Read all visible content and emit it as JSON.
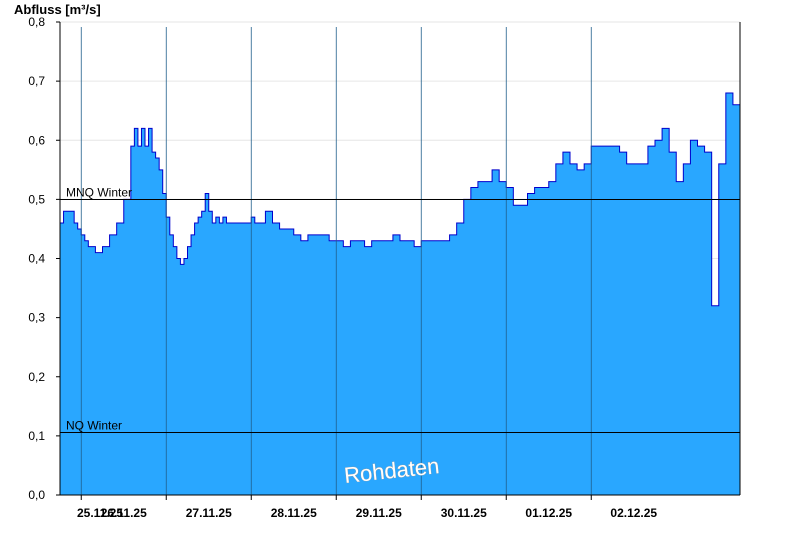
{
  "chart_data": {
    "type": "area",
    "ylabel": "Abfluss [m³/s]",
    "ylim": [
      0,
      0.8
    ],
    "yticks": [
      "0,0",
      "0,1",
      "0,2",
      "0,3",
      "0,4",
      "0,5",
      "0,6",
      "0,7",
      "0,8"
    ],
    "xlim": [
      "24.11.25 18:00",
      "02.12.25 18:00"
    ],
    "day_boundaries": [
      "26.11.25 00:00",
      "27.11.25 00:00",
      "28.11.25 00:00",
      "29.11.25 00:00",
      "30.11.25 00:00",
      "01.12.25 00:00",
      "02.12.25 00:00"
    ],
    "xtick_labels": [
      "25.11.25",
      "26.11.25",
      "27.11.25",
      "28.11.25",
      "29.11.25",
      "30.11.25",
      "01.12.25",
      "02.12.25"
    ],
    "grid": "horizontal",
    "fill_color": "#29a7ff",
    "line_color": "#0000cc",
    "reference_lines": [
      {
        "label": "MNQ Winter",
        "value": 0.5
      },
      {
        "label": "NQ Winter",
        "value": 0.107
      }
    ],
    "watermark": "Rohdaten",
    "series": [
      {
        "time_hours_from_start": [
          0,
          1,
          3,
          4,
          5,
          6,
          7,
          8,
          9,
          10,
          12,
          14,
          16,
          18,
          20,
          21,
          22,
          23,
          24,
          25,
          26,
          27,
          28,
          29,
          30,
          31,
          32,
          33,
          34,
          35,
          36,
          37,
          38,
          39,
          40,
          41,
          42,
          43,
          44,
          45,
          46,
          47,
          48,
          49,
          50,
          51,
          52,
          53,
          54,
          55,
          56,
          58,
          60,
          62,
          64,
          66,
          68,
          70,
          72,
          74,
          76,
          78,
          80,
          82,
          84,
          86,
          88,
          90,
          92,
          94,
          96,
          98,
          100,
          102,
          104,
          106,
          108,
          110,
          112,
          114,
          116,
          118,
          120,
          122,
          124,
          126,
          128,
          130,
          132,
          134,
          136,
          138,
          140,
          142,
          144,
          146,
          148,
          150,
          152,
          154,
          156,
          158,
          160,
          162,
          164,
          166,
          168,
          170,
          172,
          174,
          176,
          178,
          180,
          182,
          184,
          186,
          188,
          190,
          192
        ],
        "values": [
          0.46,
          0.48,
          0.48,
          0.46,
          0.45,
          0.44,
          0.43,
          0.42,
          0.42,
          0.41,
          0.42,
          0.44,
          0.46,
          0.5,
          0.59,
          0.62,
          0.59,
          0.62,
          0.59,
          0.62,
          0.58,
          0.57,
          0.55,
          0.51,
          0.47,
          0.44,
          0.42,
          0.4,
          0.39,
          0.4,
          0.42,
          0.44,
          0.46,
          0.47,
          0.48,
          0.51,
          0.48,
          0.46,
          0.47,
          0.46,
          0.47,
          0.46,
          0.46,
          0.46,
          0.46,
          0.46,
          0.46,
          0.46,
          0.47,
          0.46,
          0.46,
          0.48,
          0.46,
          0.45,
          0.45,
          0.44,
          0.43,
          0.44,
          0.44,
          0.44,
          0.43,
          0.43,
          0.42,
          0.43,
          0.43,
          0.42,
          0.43,
          0.43,
          0.43,
          0.44,
          0.43,
          0.43,
          0.42,
          0.43,
          0.43,
          0.43,
          0.43,
          0.44,
          0.46,
          0.5,
          0.52,
          0.53,
          0.53,
          0.55,
          0.53,
          0.52,
          0.49,
          0.49,
          0.51,
          0.52,
          0.52,
          0.53,
          0.56,
          0.58,
          0.56,
          0.55,
          0.56,
          0.59,
          0.59,
          0.59,
          0.59,
          0.58,
          0.56,
          0.56,
          0.56,
          0.59,
          0.6,
          0.62,
          0.58,
          0.53,
          0.56,
          0.6,
          0.59,
          0.58,
          0.32,
          0.56,
          0.68,
          0.66,
          0.62
        ]
      }
    ]
  }
}
